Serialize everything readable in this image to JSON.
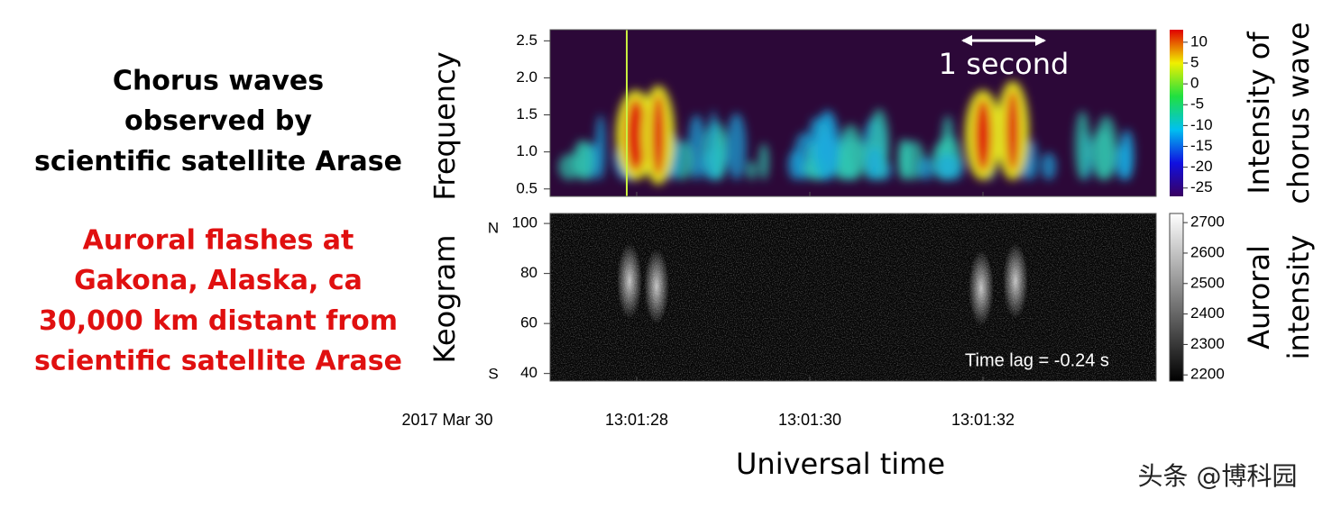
{
  "captions": [
    [
      "Chorus waves",
      "observed by",
      "scientific satellite Arase"
    ],
    [
      "Auroral flashes at",
      "Gakona, Alaska, ca",
      "30,000 km distant from",
      "scientific satellite Arase"
    ]
  ],
  "chart_data": [
    {
      "type": "spectrogram",
      "ylabel": "Frequency",
      "ylim": [
        0.4,
        2.65
      ],
      "yticks": [
        0.5,
        {
          "value": 1,
          "label": "1.0"
        },
        1.5,
        {
          "value": 2,
          "label": "2.0"
        },
        2.5
      ],
      "colorbar_label": [
        "Intensity of",
        "chorus wave"
      ],
      "clim": [
        -27,
        13
      ],
      "cticks": [
        10,
        5,
        0,
        -5,
        -10,
        -15,
        -20,
        -25
      ],
      "annotation": "1 second"
    },
    {
      "type": "keogram",
      "ylabel": "Keogram",
      "ylim": [
        37,
        104
      ],
      "yticks": [
        40,
        60,
        80,
        100
      ],
      "north": "N",
      "south": "S",
      "colorbar_label": [
        "Auroral",
        "intensity"
      ],
      "clim": [
        2180,
        2730
      ],
      "cticks": [
        2700,
        2600,
        2500,
        2400,
        2300,
        2200
      ],
      "annotation": "Time lag = -0.24 s"
    }
  ],
  "x_axis": {
    "date": "2017 Mar 30",
    "xticks": [
      "13:01:28",
      "13:01:30",
      "13:01:32"
    ],
    "xlabel": "Universal time"
  },
  "watermark": "头条 @博科园"
}
